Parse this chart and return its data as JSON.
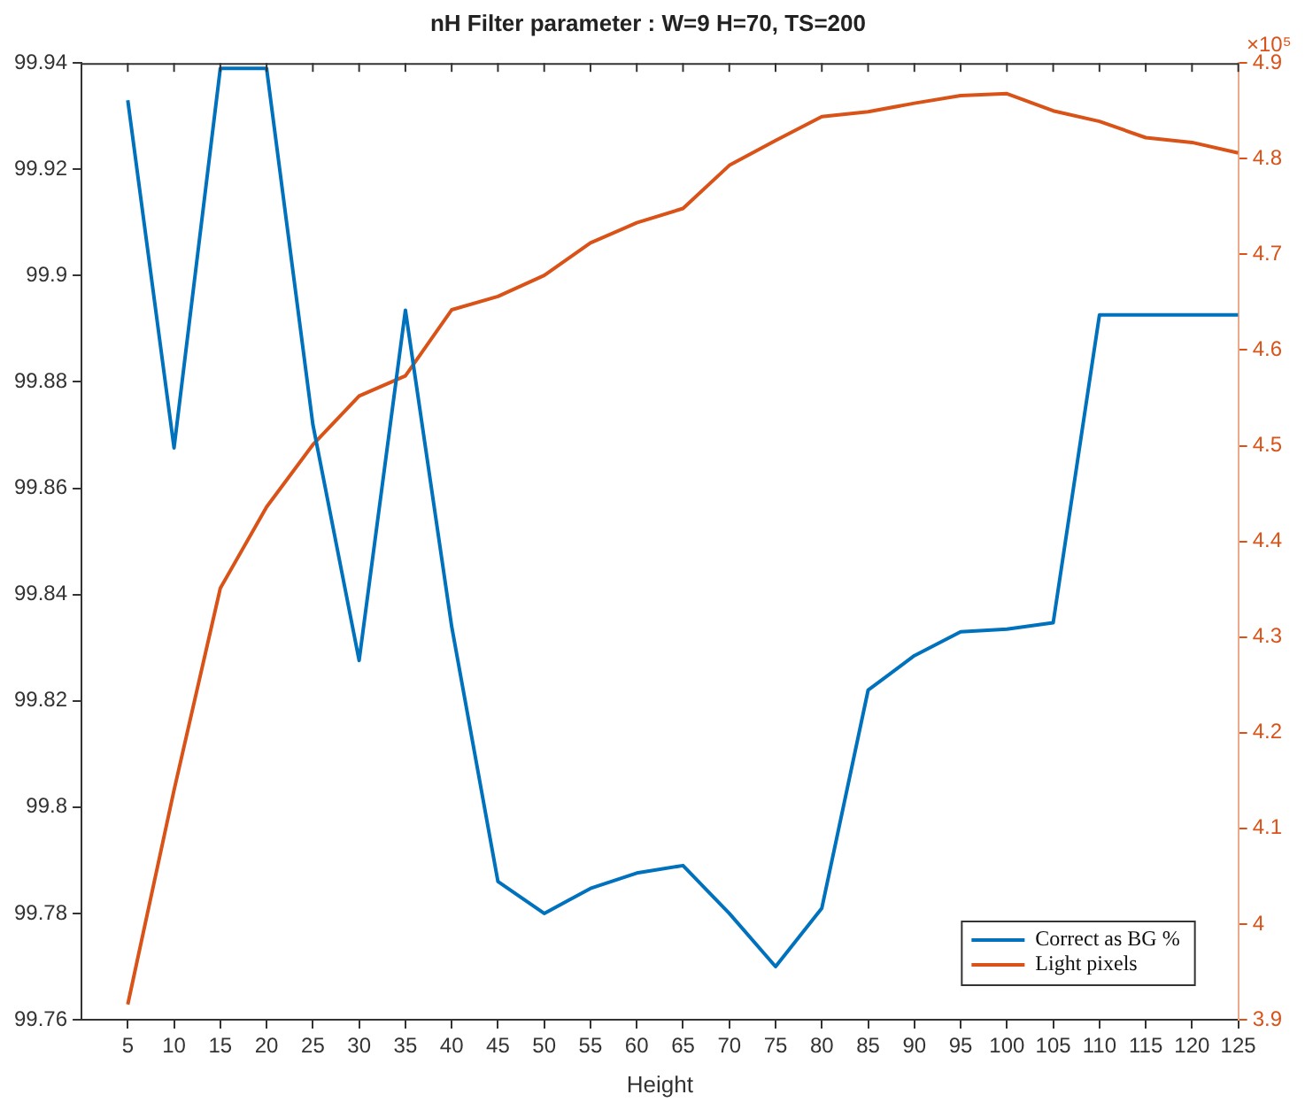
{
  "chart_data": {
    "type": "line",
    "title": "nH Filter parameter : W=9 H=70, TS=200",
    "xlabel": "Height",
    "x": [
      5,
      10,
      15,
      20,
      25,
      30,
      35,
      40,
      45,
      50,
      55,
      60,
      65,
      70,
      75,
      80,
      85,
      90,
      95,
      100,
      105,
      110,
      115,
      120,
      125
    ],
    "series": [
      {
        "name": "Correct as BG %",
        "color": "#0072bd",
        "values": [
          99.933,
          99.8676,
          99.939,
          99.939,
          99.872,
          99.8276,
          99.8935,
          99.834,
          99.786,
          99.78,
          99.7847,
          99.7876,
          99.789,
          99.78,
          99.77,
          99.781,
          99.822,
          99.8285,
          99.833,
          99.8335,
          99.8347,
          99.8926,
          99.8926,
          99.8926,
          99.8926
        ]
      },
      {
        "name": "Light pixels",
        "color": "#d95319",
        "axis": "y2",
        "values": [
          3.916,
          4.14,
          4.351,
          4.436,
          4.501,
          4.552,
          4.573,
          4.642,
          4.656,
          4.678,
          4.712,
          4.733,
          4.748,
          4.793,
          4.819,
          4.844,
          4.849,
          4.858,
          4.866,
          4.868,
          4.85,
          4.839,
          4.822,
          4.817,
          4.806
        ]
      }
    ],
    "xlim": [
      0,
      125
    ],
    "xticks": [
      5,
      10,
      15,
      20,
      25,
      30,
      35,
      40,
      45,
      50,
      55,
      60,
      65,
      70,
      75,
      80,
      85,
      90,
      95,
      100,
      105,
      110,
      115,
      120,
      125
    ],
    "ylim": [
      99.76,
      99.94
    ],
    "yticks": [
      99.76,
      99.78,
      99.8,
      99.82,
      99.84,
      99.86,
      99.88,
      99.9,
      99.92,
      99.94
    ],
    "y2lim": [
      3.9,
      4.9
    ],
    "y2ticks": [
      3.9,
      4,
      4.1,
      4.2,
      4.3,
      4.4,
      4.5,
      4.6,
      4.7,
      4.8,
      4.9
    ],
    "y2label": "×10⁵",
    "legend": "bottom right",
    "grid": false,
    "marker": "none",
    "line_style": "solid"
  }
}
